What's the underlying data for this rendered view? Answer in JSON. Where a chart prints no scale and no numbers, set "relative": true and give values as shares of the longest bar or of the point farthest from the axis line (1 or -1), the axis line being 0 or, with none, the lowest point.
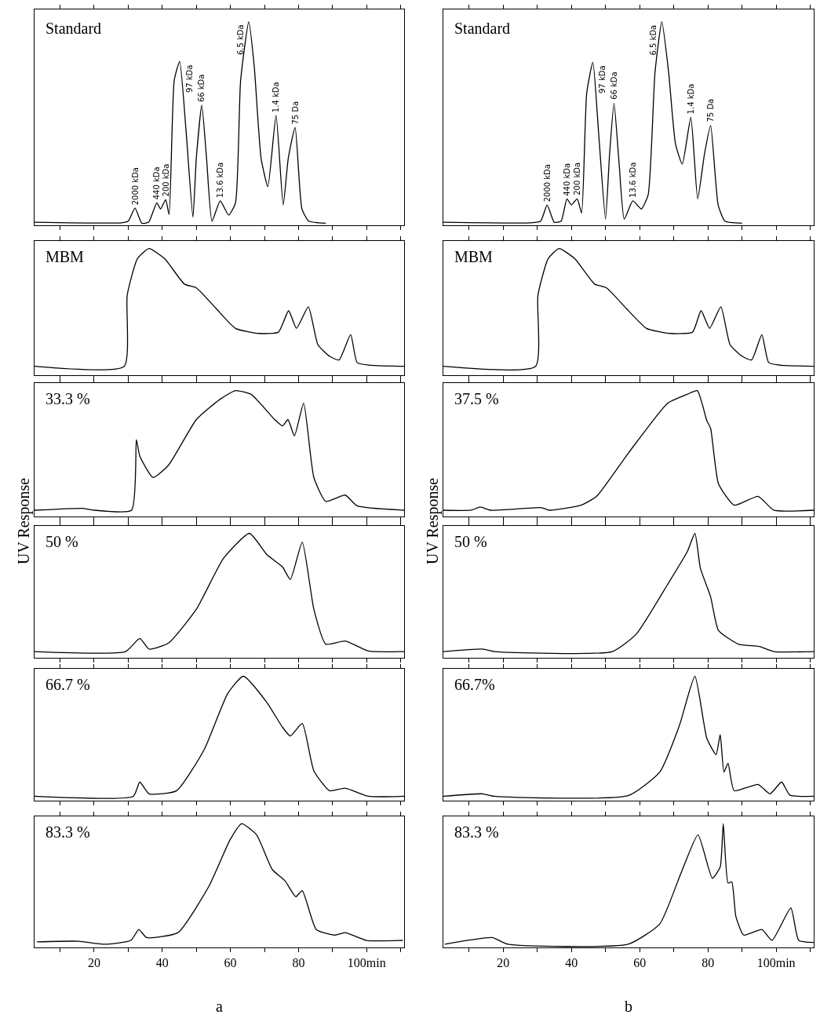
{
  "chart_data": [
    {
      "type": "line",
      "title": "Standard",
      "relative": true,
      "color": "#000000",
      "xlim": [
        2.5,
        111
      ],
      "xticks": [
        {
          "value": 10,
          "label": null
        },
        {
          "value": 20,
          "label": null
        },
        {
          "value": 30,
          "label": null
        },
        {
          "value": 40,
          "label": null
        },
        {
          "value": 50,
          "label": null
        },
        {
          "value": 60,
          "label": null
        },
        {
          "value": 70,
          "label": null
        },
        {
          "value": 80,
          "label": null
        },
        {
          "value": 90,
          "label": null
        },
        {
          "value": 100,
          "label": null
        },
        {
          "value": 110,
          "label": null
        }
      ],
      "tick_labels": false,
      "x": [
        2.5,
        28,
        30,
        32,
        34,
        36,
        38.4,
        39.5,
        41,
        42,
        43.5,
        45.1,
        47,
        49,
        50,
        51.6,
        53,
        54.6,
        57,
        59.5,
        61.5,
        63,
        65.4,
        67,
        69,
        71,
        73.4,
        75.5,
        77,
        79,
        81,
        83,
        86,
        88
      ],
      "values": [
        0.015,
        0.012,
        0.02,
        0.084,
        0.01,
        0.015,
        0.11,
        0.08,
        0.126,
        0.053,
        0.71,
        0.805,
        0.46,
        0.04,
        0.33,
        0.59,
        0.33,
        0.02,
        0.12,
        0.05,
        0.11,
        0.71,
        1.0,
        0.78,
        0.33,
        0.19,
        0.54,
        0.1,
        0.33,
        0.48,
        0.08,
        0.02,
        0.012,
        0.01
      ],
      "annotations": [
        {
          "text": "2000 kDa",
          "x": 32,
          "y": 0.084
        },
        {
          "text": "440 kDa",
          "x": 38.4,
          "y": 0.11
        },
        {
          "text": "200 kDa",
          "x": 41,
          "y": 0.126
        },
        {
          "text": "97 kDa",
          "x": 45.1,
          "y": 0.805
        },
        {
          "text": "66 kDa",
          "x": 51.6,
          "y": 0.59
        },
        {
          "text": "13.6 kDa",
          "x": 57,
          "y": 0.12
        },
        {
          "text": "6.5 kDa",
          "x": 65.4,
          "y": 1.0
        },
        {
          "text": "1.4 kDa",
          "x": 73.4,
          "y": 0.54
        },
        {
          "text": "75 Da",
          "x": 79,
          "y": 0.48
        }
      ]
    },
    {
      "type": "line",
      "title": "Standard",
      "relative": true,
      "color": "#000000",
      "xlim": [
        2.5,
        111
      ],
      "xticks": [
        {
          "value": 10,
          "label": null
        },
        {
          "value": 20,
          "label": null
        },
        {
          "value": 30,
          "label": null
        },
        {
          "value": 40,
          "label": null
        },
        {
          "value": 50,
          "label": null
        },
        {
          "value": 60,
          "label": null
        },
        {
          "value": 70,
          "label": null
        },
        {
          "value": 80,
          "label": null
        },
        {
          "value": 90,
          "label": null
        },
        {
          "value": 100,
          "label": null
        },
        {
          "value": 110,
          "label": null
        }
      ],
      "tick_labels": false,
      "x": [
        2.5,
        28,
        31,
        32.9,
        35,
        37,
        38.7,
        40,
        41.7,
        43,
        44.5,
        46.3,
        48,
        50,
        51.2,
        52.5,
        54,
        55.5,
        58,
        60.5,
        62.5,
        64.5,
        66.5,
        68.5,
        70.5,
        72.5,
        75,
        77,
        79,
        80.8,
        83,
        85,
        90
      ],
      "values": [
        0.015,
        0.012,
        0.02,
        0.1,
        0.015,
        0.02,
        0.13,
        0.1,
        0.13,
        0.06,
        0.65,
        0.8,
        0.45,
        0.03,
        0.35,
        0.6,
        0.3,
        0.03,
        0.12,
        0.08,
        0.15,
        0.75,
        1.0,
        0.75,
        0.4,
        0.3,
        0.53,
        0.13,
        0.35,
        0.49,
        0.1,
        0.02,
        0.01
      ],
      "annotations": [
        {
          "text": "2000 kDa",
          "x": 32.9,
          "y": 0.1
        },
        {
          "text": "440 kDa",
          "x": 38.7,
          "y": 0.13
        },
        {
          "text": "200 kDa",
          "x": 41.7,
          "y": 0.13
        },
        {
          "text": "97 kDa",
          "x": 46.3,
          "y": 0.8
        },
        {
          "text": "66 kDa",
          "x": 52.5,
          "y": 0.6
        },
        {
          "text": "13.6 kDa",
          "x": 58,
          "y": 0.12
        },
        {
          "text": "6.5 kDa",
          "x": 66.5,
          "y": 1.0
        },
        {
          "text": "1.4 kDa",
          "x": 75,
          "y": 0.53
        },
        {
          "text": "75 Da",
          "x": 80.8,
          "y": 0.49
        }
      ]
    },
    {
      "type": "line",
      "title": "MBM",
      "relative": true,
      "color": "#000000",
      "xlim": [
        2.5,
        111
      ],
      "xticks": [
        {
          "value": 10,
          "label": null
        },
        {
          "value": 20,
          "label": null
        },
        {
          "value": 30,
          "label": null
        },
        {
          "value": 40,
          "label": null
        },
        {
          "value": 50,
          "label": null
        },
        {
          "value": 60,
          "label": null
        },
        {
          "value": 70,
          "label": null
        },
        {
          "value": 80,
          "label": null
        },
        {
          "value": 90,
          "label": null
        },
        {
          "value": 100,
          "label": null
        },
        {
          "value": 110,
          "label": null
        }
      ],
      "tick_labels": false,
      "x": [
        2.5,
        28.8,
        29.7,
        32.7,
        36.1,
        40.7,
        46.5,
        50,
        55.7,
        61.5,
        68.4,
        74.1,
        77.1,
        79.4,
        82.9,
        85.7,
        89.1,
        91.9,
        95.3,
        97.2,
        100.6,
        111
      ],
      "values": [
        0.07,
        0.07,
        0.63,
        0.92,
        1.0,
        0.92,
        0.72,
        0.69,
        0.53,
        0.37,
        0.33,
        0.34,
        0.51,
        0.37,
        0.54,
        0.24,
        0.15,
        0.12,
        0.32,
        0.1,
        0.08,
        0.07
      ]
    },
    {
      "type": "line",
      "title": "MBM",
      "relative": true,
      "color": "#000000",
      "xlim": [
        2.5,
        111
      ],
      "xticks": [
        {
          "value": 10,
          "label": null
        },
        {
          "value": 20,
          "label": null
        },
        {
          "value": 30,
          "label": null
        },
        {
          "value": 40,
          "label": null
        },
        {
          "value": 50,
          "label": null
        },
        {
          "value": 60,
          "label": null
        },
        {
          "value": 70,
          "label": null
        },
        {
          "value": 80,
          "label": null
        },
        {
          "value": 90,
          "label": null
        },
        {
          "value": 100,
          "label": null
        },
        {
          "value": 110,
          "label": null
        }
      ],
      "tick_labels": false,
      "x": [
        2.5,
        29.5,
        30.2,
        33.2,
        36.4,
        41,
        46.8,
        50.3,
        56,
        62,
        69,
        75.5,
        78,
        80.5,
        83.8,
        86.5,
        90,
        92.8,
        95.8,
        97.8,
        101,
        111
      ],
      "values": [
        0.07,
        0.07,
        0.63,
        0.92,
        1.0,
        0.92,
        0.72,
        0.69,
        0.53,
        0.37,
        0.33,
        0.34,
        0.51,
        0.37,
        0.54,
        0.24,
        0.15,
        0.12,
        0.32,
        0.1,
        0.08,
        0.07
      ]
    },
    {
      "type": "line",
      "title": "33.3 %",
      "relative": true,
      "color": "#000000",
      "xlim": [
        2.5,
        111
      ],
      "xticks": [
        {
          "value": 10,
          "label": null
        },
        {
          "value": 20,
          "label": null
        },
        {
          "value": 30,
          "label": null
        },
        {
          "value": 40,
          "label": null
        },
        {
          "value": 50,
          "label": null
        },
        {
          "value": 60,
          "label": null
        },
        {
          "value": 70,
          "label": null
        },
        {
          "value": 80,
          "label": null
        },
        {
          "value": 90,
          "label": null
        },
        {
          "value": 100,
          "label": null
        },
        {
          "value": 110,
          "label": null
        }
      ],
      "tick_labels": false,
      "ylabel": "UV Response",
      "x": [
        2.5,
        16.5,
        20,
        31,
        32.4,
        33.4,
        37.3,
        41.9,
        50,
        56.9,
        61.5,
        66.1,
        73,
        75.3,
        76.9,
        78.8,
        81.5,
        84.5,
        88,
        93.7,
        97.2,
        111
      ],
      "values": [
        0.05,
        0.065,
        0.05,
        0.05,
        0.61,
        0.48,
        0.31,
        0.41,
        0.77,
        0.93,
        1.0,
        0.97,
        0.77,
        0.72,
        0.77,
        0.64,
        0.9,
        0.31,
        0.12,
        0.17,
        0.085,
        0.05
      ]
    },
    {
      "type": "line",
      "title": "37.5 %",
      "relative": true,
      "color": "#000000",
      "xlim": [
        2.5,
        111
      ],
      "xticks": [
        {
          "value": 10,
          "label": null
        },
        {
          "value": 20,
          "label": null
        },
        {
          "value": 30,
          "label": null
        },
        {
          "value": 40,
          "label": null
        },
        {
          "value": 50,
          "label": null
        },
        {
          "value": 60,
          "label": null
        },
        {
          "value": 70,
          "label": null
        },
        {
          "value": 80,
          "label": null
        },
        {
          "value": 90,
          "label": null
        },
        {
          "value": 100,
          "label": null
        },
        {
          "value": 110,
          "label": null
        }
      ],
      "tick_labels": false,
      "ylabel": "UV Response",
      "x": [
        2.5,
        10.6,
        13.3,
        16.3,
        31.3,
        33.6,
        42.8,
        47.4,
        56.6,
        68.2,
        73.9,
        76.9,
        79.7,
        80.8,
        83.1,
        87.7,
        94.7,
        99.3,
        111
      ],
      "values": [
        0.05,
        0.05,
        0.075,
        0.05,
        0.07,
        0.05,
        0.09,
        0.16,
        0.5,
        0.9,
        0.97,
        1.0,
        0.76,
        0.7,
        0.26,
        0.09,
        0.16,
        0.05,
        0.05
      ]
    },
    {
      "type": "line",
      "title": "50 %",
      "relative": true,
      "color": "#000000",
      "xlim": [
        2.5,
        111
      ],
      "xticks": [
        {
          "value": 10,
          "label": null
        },
        {
          "value": 20,
          "label": null
        },
        {
          "value": 30,
          "label": null
        },
        {
          "value": 40,
          "label": null
        },
        {
          "value": 50,
          "label": null
        },
        {
          "value": 60,
          "label": null
        },
        {
          "value": 70,
          "label": null
        },
        {
          "value": 80,
          "label": null
        },
        {
          "value": 90,
          "label": null
        },
        {
          "value": 100,
          "label": null
        },
        {
          "value": 110,
          "label": null
        }
      ],
      "tick_labels": false,
      "x": [
        2.5,
        29.2,
        33.4,
        36.1,
        41.9,
        50,
        58,
        65.6,
        70.7,
        75.3,
        77.6,
        81.1,
        84.5,
        88,
        93.7,
        100.6,
        111
      ],
      "values": [
        0.05,
        0.05,
        0.155,
        0.07,
        0.12,
        0.39,
        0.8,
        1.0,
        0.83,
        0.73,
        0.63,
        0.93,
        0.39,
        0.11,
        0.135,
        0.054,
        0.05
      ]
    },
    {
      "type": "line",
      "title": "50 %",
      "relative": true,
      "color": "#000000",
      "xlim": [
        2.5,
        111
      ],
      "xticks": [
        {
          "value": 10,
          "label": null
        },
        {
          "value": 20,
          "label": null
        },
        {
          "value": 30,
          "label": null
        },
        {
          "value": 40,
          "label": null
        },
        {
          "value": 50,
          "label": null
        },
        {
          "value": 60,
          "label": null
        },
        {
          "value": 70,
          "label": null
        },
        {
          "value": 80,
          "label": null
        },
        {
          "value": 90,
          "label": null
        },
        {
          "value": 100,
          "label": null
        },
        {
          "value": 110,
          "label": null
        }
      ],
      "tick_labels": false,
      "x": [
        2.5,
        14,
        17.5,
        52,
        59,
        68.2,
        73.9,
        76.2,
        77.8,
        80.8,
        83.1,
        88.9,
        95.1,
        99.3,
        111
      ],
      "values": [
        0.05,
        0.07,
        0.05,
        0.05,
        0.19,
        0.59,
        0.85,
        1.0,
        0.72,
        0.49,
        0.22,
        0.11,
        0.09,
        0.05,
        0.05
      ]
    },
    {
      "type": "line",
      "title": "66.7 %",
      "relative": true,
      "color": "#000000",
      "xlim": [
        2.5,
        111
      ],
      "xticks": [
        {
          "value": 10,
          "label": null
        },
        {
          "value": 20,
          "label": null
        },
        {
          "value": 30,
          "label": null
        },
        {
          "value": 40,
          "label": null
        },
        {
          "value": 50,
          "label": null
        },
        {
          "value": 60,
          "label": null
        },
        {
          "value": 70,
          "label": null
        },
        {
          "value": 80,
          "label": null
        },
        {
          "value": 90,
          "label": null
        },
        {
          "value": 100,
          "label": null
        },
        {
          "value": 110,
          "label": null
        }
      ],
      "tick_labels": false,
      "x": [
        2.5,
        31.5,
        33.4,
        36.1,
        44.2,
        52.3,
        59.2,
        63.8,
        70.7,
        75.3,
        77.6,
        81.1,
        84.5,
        89.1,
        93.7,
        100.6,
        111
      ],
      "values": [
        0.035,
        0.035,
        0.15,
        0.055,
        0.08,
        0.41,
        0.86,
        1.0,
        0.79,
        0.59,
        0.52,
        0.62,
        0.24,
        0.08,
        0.1,
        0.035,
        0.035
      ]
    },
    {
      "type": "line",
      "title": "66.7%",
      "relative": true,
      "color": "#000000",
      "xlim": [
        2.5,
        111
      ],
      "xticks": [
        {
          "value": 10,
          "label": null
        },
        {
          "value": 20,
          "label": null
        },
        {
          "value": 30,
          "label": null
        },
        {
          "value": 40,
          "label": null
        },
        {
          "value": 50,
          "label": null
        },
        {
          "value": 60,
          "label": null
        },
        {
          "value": 70,
          "label": null
        },
        {
          "value": 80,
          "label": null
        },
        {
          "value": 90,
          "label": null
        },
        {
          "value": 100,
          "label": null
        },
        {
          "value": 110,
          "label": null
        }
      ],
      "tick_labels": false,
      "x": [
        2.5,
        14,
        17.5,
        56.6,
        65.9,
        71.6,
        76.2,
        79.7,
        82.4,
        83.6,
        84.7,
        85.9,
        87.7,
        94.7,
        98.2,
        101.6,
        104,
        111
      ],
      "values": [
        0.035,
        0.055,
        0.035,
        0.04,
        0.23,
        0.6,
        1.0,
        0.5,
        0.37,
        0.53,
        0.23,
        0.3,
        0.08,
        0.13,
        0.055,
        0.15,
        0.045,
        0.035
      ]
    },
    {
      "type": "line",
      "title": "83.3 %",
      "relative": true,
      "color": "#000000",
      "xlim": [
        2.5,
        111
      ],
      "xticks": [
        {
          "value": 10,
          "label": null
        },
        20,
        {
          "value": 30,
          "label": null
        },
        40,
        {
          "value": 50,
          "label": null
        },
        60,
        {
          "value": 70,
          "label": null
        },
        80,
        {
          "value": 90,
          "label": null
        },
        {
          "value": 100,
          "label": "100min"
        },
        {
          "value": 110,
          "label": null
        }
      ],
      "tick_labels": "x",
      "x": [
        3.2,
        15.4,
        23,
        30.8,
        33.1,
        35.4,
        44.6,
        53.8,
        59.9,
        63.3,
        67.7,
        72.3,
        76,
        79.2,
        81.1,
        85.2,
        90.7,
        93.7,
        99.9,
        110.6
      ],
      "values": [
        0.045,
        0.05,
        0.026,
        0.057,
        0.145,
        0.08,
        0.12,
        0.5,
        0.87,
        1.0,
        0.91,
        0.63,
        0.54,
        0.41,
        0.46,
        0.145,
        0.1,
        0.12,
        0.057,
        0.057
      ],
      "annotations": [
        "a"
      ]
    },
    {
      "type": "line",
      "title": "83.3 %",
      "relative": true,
      "color": "#000000",
      "xlim": [
        2.5,
        111
      ],
      "xticks": [
        {
          "value": 10,
          "label": null
        },
        20,
        {
          "value": 30,
          "label": null
        },
        40,
        {
          "value": 50,
          "label": null
        },
        60,
        {
          "value": 70,
          "label": null
        },
        80,
        {
          "value": 90,
          "label": null
        },
        {
          "value": 100,
          "label": "100min"
        },
        {
          "value": 110,
          "label": null
        }
      ],
      "tick_labels": "x",
      "x": [
        2.9,
        16.8,
        21.4,
        56.6,
        65.9,
        72.1,
        77.1,
        81.3,
        83.6,
        84.5,
        85.9,
        87,
        88.2,
        90.5,
        95.8,
        98.8,
        104.3,
        106.6,
        111
      ],
      "values": [
        0.026,
        0.08,
        0.026,
        0.026,
        0.19,
        0.6,
        0.91,
        0.56,
        0.65,
        1.0,
        0.52,
        0.53,
        0.25,
        0.1,
        0.145,
        0.057,
        0.32,
        0.057,
        0.04
      ],
      "annotations": [
        "b"
      ]
    }
  ]
}
